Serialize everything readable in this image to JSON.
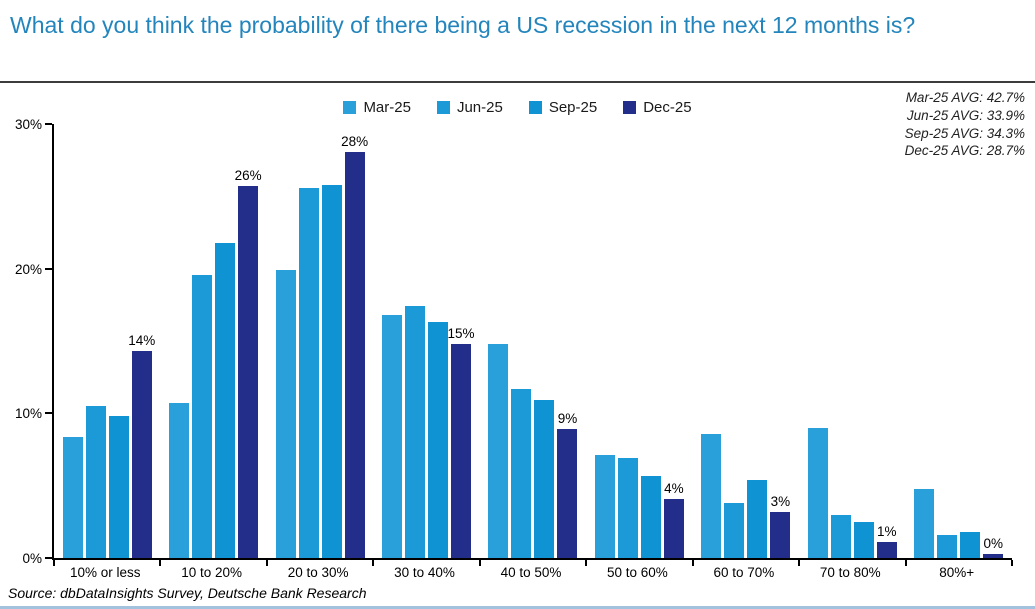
{
  "page": {
    "title": "What do you think the probability of there being a US recession in the next 12 months is?",
    "source": "Source: dbDataInsights Survey, Deutsche Bank Research"
  },
  "annotations": {
    "averages": [
      "Mar-25 AVG: 42.7%",
      "Jun-25 AVG: 33.9%",
      "Sep-25 AVG: 34.3%",
      "Dec-25 AVG: 28.7%"
    ]
  },
  "chart_data": {
    "type": "bar",
    "title": "What do you think the probability of there being a US recession in the next 12 months is?",
    "categories": [
      "10% or less",
      "10 to 20%",
      "20 to 30%",
      "30 to 40%",
      "40 to 50%",
      "50 to 60%",
      "60 to 70%",
      "70 to 80%",
      "80%+"
    ],
    "series": [
      {
        "name": "Mar-25",
        "color": "#2aa0db",
        "values": [
          8.4,
          10.7,
          19.9,
          16.8,
          14.8,
          7.1,
          8.6,
          9.0,
          4.8
        ]
      },
      {
        "name": "Jun-25",
        "color": "#1b9ad7",
        "values": [
          10.5,
          19.6,
          25.6,
          17.4,
          11.7,
          6.9,
          3.8,
          3.0,
          1.6
        ]
      },
      {
        "name": "Sep-25",
        "color": "#0f93d2",
        "values": [
          9.8,
          21.8,
          25.8,
          16.3,
          10.9,
          5.7,
          5.4,
          2.5,
          1.8
        ]
      },
      {
        "name": "Dec-25",
        "color": "#232e8a",
        "values": [
          14.3,
          25.7,
          28.1,
          14.8,
          8.9,
          4.1,
          3.2,
          1.1,
          0.3
        ],
        "labels": [
          "14%",
          "26%",
          "28%",
          "15%",
          "9%",
          "4%",
          "3%",
          "1%",
          "0%"
        ]
      }
    ],
    "xlabel": "",
    "ylabel": "",
    "ylim": [
      0,
      30
    ],
    "yticks": [
      "0%",
      "10%",
      "20%",
      "30%"
    ],
    "ytick_values": [
      0,
      10,
      20,
      30
    ],
    "legend_position": "top-center",
    "grid": false,
    "annotations": [
      "Mar-25 AVG: 42.7%",
      "Jun-25 AVG: 33.9%",
      "Sep-25 AVG: 34.3%",
      "Dec-25 AVG: 28.7%"
    ]
  }
}
